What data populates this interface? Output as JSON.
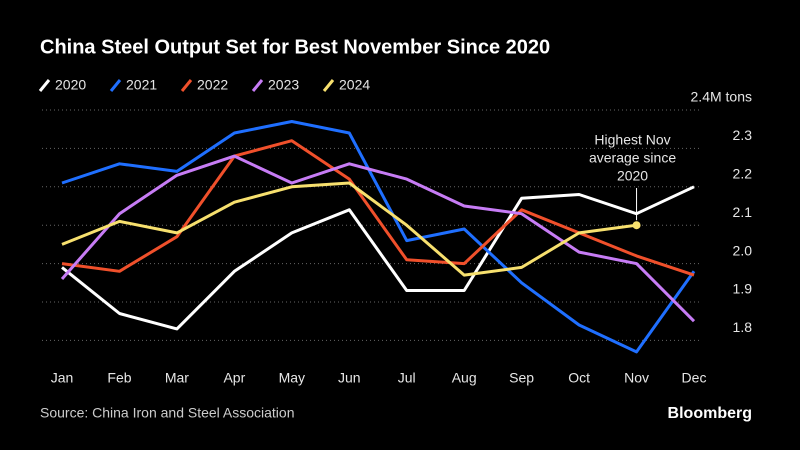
{
  "chart_data": {
    "type": "line",
    "title": "China Steel Output Set for Best November Since 2020",
    "source": "Source: China Iron and Steel Association",
    "brand": "Bloomberg",
    "annotation": [
      "Highest Nov",
      "average since",
      "2020"
    ],
    "categories": [
      "Jan",
      "Feb",
      "Mar",
      "Apr",
      "May",
      "Jun",
      "Jul",
      "Aug",
      "Sep",
      "Oct",
      "Nov",
      "Dec"
    ],
    "series": [
      {
        "name": "2020",
        "color": "#ffffff",
        "values": [
          1.99,
          1.87,
          1.83,
          1.98,
          2.08,
          2.14,
          1.93,
          1.93,
          2.17,
          2.18,
          2.13,
          2.2
        ]
      },
      {
        "name": "2021",
        "color": "#1f6fff",
        "values": [
          2.21,
          2.26,
          2.24,
          2.34,
          2.37,
          2.34,
          2.06,
          2.09,
          1.95,
          1.84,
          1.77,
          1.98
        ]
      },
      {
        "name": "2022",
        "color": "#f0502b",
        "values": [
          2.0,
          1.98,
          2.07,
          2.28,
          2.32,
          2.22,
          2.01,
          2.0,
          2.14,
          2.08,
          2.02,
          1.97
        ]
      },
      {
        "name": "2023",
        "color": "#c77cf5",
        "values": [
          1.96,
          2.13,
          2.23,
          2.28,
          2.21,
          2.26,
          2.22,
          2.15,
          2.13,
          2.03,
          2.0,
          1.85
        ]
      },
      {
        "name": "2024",
        "color": "#f7e06e",
        "values": [
          2.05,
          2.11,
          2.08,
          2.16,
          2.2,
          2.21,
          2.1,
          1.97,
          1.99,
          2.08,
          2.1,
          null
        ]
      }
    ],
    "ylim": [
      1.76,
      2.42
    ],
    "yticks": [
      1.8,
      1.9,
      {
        "value": 2.0,
        "label": "2.0"
      },
      2.1,
      2.2,
      2.3,
      {
        "value": 2.4,
        "label": "2.4M tons"
      }
    ],
    "grid": true
  }
}
